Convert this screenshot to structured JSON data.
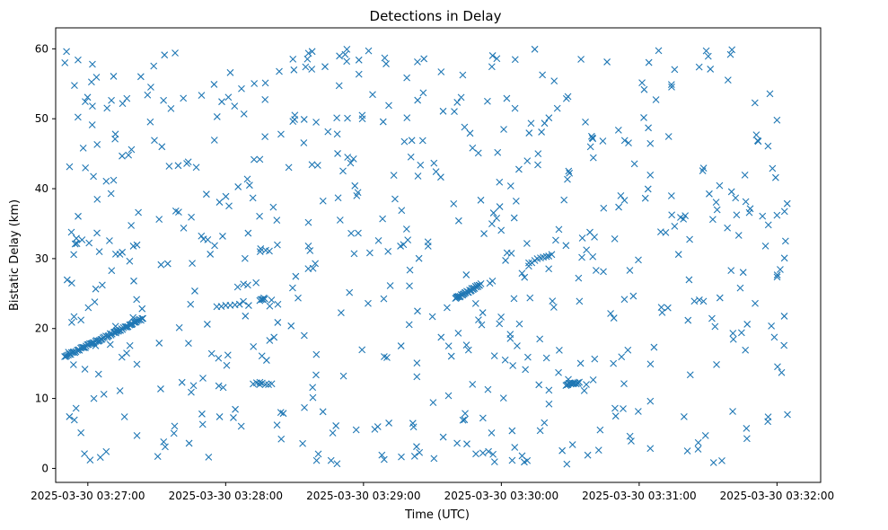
{
  "chart_data": {
    "type": "scatter",
    "title": "Detections in Delay",
    "xlabel": "Time (UTC)",
    "ylabel": "Bistatic Delay (km)",
    "marker": "x",
    "color": "#1f77b4",
    "x_unit": "seconds after 2025-03-30 03:27:00",
    "xlim": [
      -14,
      319
    ],
    "ylim": [
      -2,
      63
    ],
    "xticks": [
      {
        "value": 0,
        "label": "2025-03-30 03:27:00"
      },
      {
        "value": 60,
        "label": "2025-03-30 03:28:00"
      },
      {
        "value": 120,
        "label": "2025-03-30 03:29:00"
      },
      {
        "value": 180,
        "label": "2025-03-30 03:30:00"
      },
      {
        "value": 240,
        "label": "2025-03-30 03:31:00"
      },
      {
        "value": 300,
        "label": "2025-03-30 03:32:00"
      }
    ],
    "yticks": [
      0,
      10,
      20,
      30,
      40,
      50,
      60
    ],
    "generated_tracks": [
      {
        "t0": -10,
        "t1": 24,
        "y0": 16.0,
        "y1": 21.4,
        "n": 70
      },
      {
        "t0": 56,
        "t1": 66,
        "y0": 23.0,
        "y1": 23.6,
        "n": 6
      },
      {
        "t0": 75,
        "t1": 77,
        "y0": 24.1,
        "y1": 24.3,
        "n": 6
      },
      {
        "t0": 160,
        "t1": 171,
        "y0": 24.3,
        "y1": 26.3,
        "n": 30
      },
      {
        "t0": 175,
        "t1": 176,
        "y0": 26.5,
        "y1": 26.8,
        "n": 2
      },
      {
        "t0": 192,
        "t1": 202,
        "y0": 29.4,
        "y1": 30.6,
        "n": 9
      },
      {
        "t0": 208,
        "t1": 214,
        "y0": 12.0,
        "y1": 12.2,
        "n": 14
      },
      {
        "t0": 72,
        "t1": 80,
        "y0": 12.2,
        "y1": 12.0,
        "n": 7
      }
    ],
    "generated_noise": {
      "count": 560,
      "seed": 20250330,
      "x_range": [
        -10,
        305
      ],
      "y_range": [
        0.5,
        60
      ]
    },
    "series": [
      {
        "name": "Detections",
        "x": [
          -10,
          -7,
          -5,
          -2,
          2,
          5,
          12,
          17,
          19,
          22,
          26,
          38,
          62,
          75,
          90,
          96,
          112,
          118,
          131,
          146,
          164,
          170,
          196,
          203,
          217,
          232,
          244,
          258,
          271,
          284,
          291,
          300,
          302,
          -8,
          -3,
          1,
          7,
          8,
          14,
          33,
          45,
          50,
          84,
          108,
          128,
          157,
          165,
          185,
          211,
          223,
          236,
          261,
          276,
          296,
          -6,
          3,
          20,
          41,
          57,
          70,
          99,
          122,
          140,
          150,
          177,
          189,
          214,
          229,
          250,
          268,
          280,
          295
        ],
        "y": [
          58.0,
          26.5,
          32.9,
          45.8,
          57.8,
          31.0,
          47.8,
          52.9,
          45.6,
          36.6,
          53.4,
          59.4,
          56.6,
          31.0,
          49.9,
          31.8,
          59.2,
          58.4,
          51.9,
          53.7,
          48.8,
          45.1,
          45.0,
          55.4,
          12.0,
          39.0,
          48.7,
          35.9,
          57.1,
          25.8,
          47.7,
          36.2,
          13.7,
          7.4,
          5.1,
          1.2,
          10.6,
          2.4,
          11.1,
          3.8,
          10.9,
          6.3,
          8.0,
          6.1,
          1.9,
          10.4,
          3.5,
          14.7,
          3.4,
          5.5,
          4.6,
          2.5,
          1.1,
          6.7,
          21.7,
          23.8,
          26.8,
          12.3,
          11.8,
          23.3,
          29.3,
          23.6,
          26.1,
          21.7,
          16.1,
          27.9,
          23.9,
          21.5,
          22.3,
          23.9,
          28.3,
          31.8
        ]
      }
    ]
  }
}
